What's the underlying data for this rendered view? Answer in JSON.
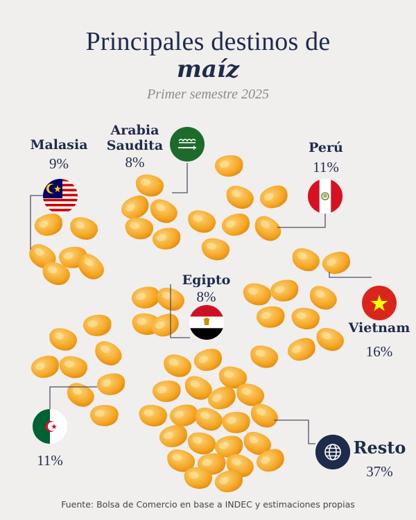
{
  "header": {
    "title_line1": "Principales destinos de",
    "title_line2": "maíz",
    "subtitle": "Primer semestre 2025"
  },
  "chart_data": {
    "type": "pie",
    "title": "Principales destinos de maíz",
    "subtitle": "Primer semestre 2025",
    "categories": [
      "Malasia",
      "Arabia Saudita",
      "Perú",
      "Egipto",
      "Vietnam",
      "Argelia",
      "Resto"
    ],
    "values": [
      9,
      8,
      11,
      8,
      16,
      11,
      37
    ],
    "value_labels": [
      "9%",
      "8%",
      "11%",
      "8%",
      "16%",
      "11%",
      "37%"
    ],
    "unit": "%"
  },
  "labels": {
    "malasia": "Malasia",
    "arabia_line1": "Arabia",
    "arabia_line2": "Saudita",
    "peru": "Perú",
    "egipto": "Egipto",
    "vietnam": "Vietnam",
    "resto": "Resto"
  },
  "flags": {
    "malasia": "malaysia-flag-icon",
    "arabia": "saudi-arabia-flag-icon",
    "peru": "peru-flag-icon",
    "egipto": "egypt-flag-icon",
    "vietnam": "vietnam-flag-icon",
    "argelia": "algeria-flag-icon",
    "resto": "globe-icon"
  },
  "colors": {
    "background": "#f1efee",
    "text": "#1e2b4a",
    "kernel": "#f5a623",
    "kernel_light": "#fbd47a"
  },
  "source": "Fuente: Bolsa de Comercio en base a INDEC y estimaciones propias"
}
